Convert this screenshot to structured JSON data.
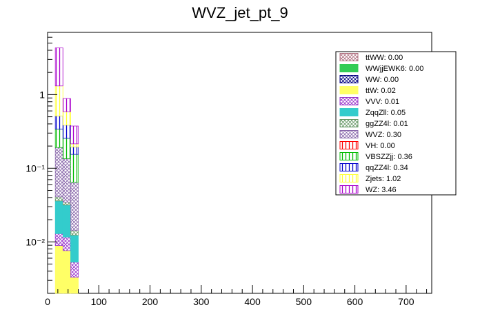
{
  "chart_data": {
    "type": "bar",
    "title": "WVZ_jet_pt_9",
    "xlabel": "",
    "ylabel": "",
    "stacked": true,
    "y_scale": "log",
    "xlim": [
      0,
      750
    ],
    "ylim": [
      0.002,
      7.0
    ],
    "bin_edges": [
      15,
      30,
      45,
      60
    ],
    "x_ticks": [
      0,
      100,
      200,
      300,
      400,
      500,
      600,
      700
    ],
    "x_tick_labels": [
      "0",
      "100",
      "200",
      "300",
      "400",
      "500",
      "600",
      "700"
    ],
    "y_ticks": [
      0.01,
      0.1,
      1
    ],
    "y_tick_labels": [
      "10⁻²",
      "10⁻¹",
      "1"
    ],
    "legend_position": "top-right",
    "series": [
      {
        "name": "ttWW: 0.00",
        "color": "#b07080",
        "pattern": "crosshatch",
        "values": [
          0.0003,
          0.0002,
          0.0001
        ]
      },
      {
        "name": "WWjjEWK6: 0.00",
        "color": "#33cc55",
        "pattern": "solid",
        "values": [
          0.0003,
          0.0002,
          0.0001
        ]
      },
      {
        "name": "WW: 0.00",
        "color": "#000080",
        "pattern": "crosshatch",
        "values": [
          0.0003,
          0.0002,
          0.0001
        ]
      },
      {
        "name": "ttW: 0.02",
        "color": "#ffff66",
        "pattern": "solid",
        "values": [
          0.008,
          0.007,
          0.003
        ]
      },
      {
        "name": "VVV: 0.01",
        "color": "#9933cc",
        "pattern": "crosshatch",
        "values": [
          0.004,
          0.004,
          0.002
        ]
      },
      {
        "name": "ZqqZll: 0.05",
        "color": "#33cccc",
        "pattern": "solid",
        "values": [
          0.023,
          0.02,
          0.007
        ]
      },
      {
        "name": "ggZZ4l: 0.01",
        "color": "#669966",
        "pattern": "crosshatch",
        "values": [
          0.005,
          0.003,
          0.002
        ]
      },
      {
        "name": "WVZ: 0.30",
        "color": "#8866aa",
        "pattern": "crosshatch",
        "values": [
          0.15,
          0.1,
          0.05
        ]
      },
      {
        "name": "VH: 0.00",
        "color": "#ff0000",
        "pattern": "vertical",
        "values": [
          0.0003,
          0.0002,
          0.0001
        ]
      },
      {
        "name": "VBSZZjj: 0.36",
        "color": "#00bb00",
        "pattern": "vertical",
        "values": [
          0.15,
          0.12,
          0.09
        ]
      },
      {
        "name": "qqZZ4l: 0.34",
        "color": "#0000cc",
        "pattern": "vertical",
        "values": [
          0.17,
          0.13,
          0.04
        ]
      },
      {
        "name": "Zjets: 1.02",
        "color": "#ffff33",
        "pattern": "vertical",
        "values": [
          0.8,
          0.2,
          0.02
        ]
      },
      {
        "name": "WZ: 3.46",
        "color": "#aa00cc",
        "pattern": "vertical",
        "values": [
          3.0,
          0.3,
          0.16
        ]
      }
    ]
  }
}
